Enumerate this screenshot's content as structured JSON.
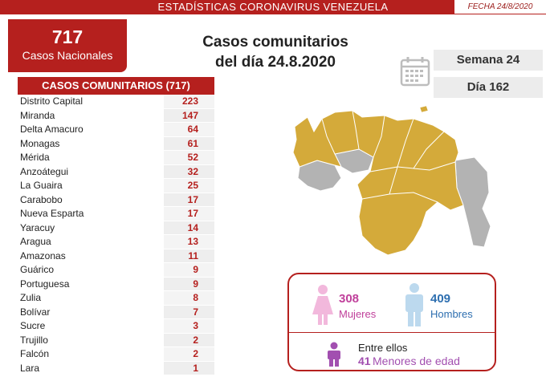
{
  "header": {
    "title": "ESTADÍSTICAS CORONAVIRUS VENEZUELA",
    "date": "FECHA 24/8/2020"
  },
  "national": {
    "count": "717",
    "label": "Casos Nacionales"
  },
  "headline": {
    "line1": "Casos comunitarios",
    "line2": "del día 24.8.2020"
  },
  "calendar": {
    "week": "Semana 24",
    "day": "Día 162"
  },
  "table": {
    "header": "CASOS COMUNITARIOS (717)",
    "rows": [
      {
        "name": "Distrito Capital",
        "value": "223"
      },
      {
        "name": "Miranda",
        "value": "147"
      },
      {
        "name": "Delta Amacuro",
        "value": "64"
      },
      {
        "name": "Monagas",
        "value": "61"
      },
      {
        "name": "Mérida",
        "value": "52"
      },
      {
        "name": "Anzoátegui",
        "value": "32"
      },
      {
        "name": "La Guaira",
        "value": "25"
      },
      {
        "name": "Carabobo",
        "value": "17"
      },
      {
        "name": "Nueva Esparta",
        "value": "17"
      },
      {
        "name": "Yaracuy",
        "value": "14"
      },
      {
        "name": "Aragua",
        "value": "13"
      },
      {
        "name": "Amazonas",
        "value": "11"
      },
      {
        "name": "Guárico",
        "value": "9"
      },
      {
        "name": "Portuguesa",
        "value": "9"
      },
      {
        "name": "Zulia",
        "value": "8"
      },
      {
        "name": "Bolívar",
        "value": "7"
      },
      {
        "name": "Sucre",
        "value": "3"
      },
      {
        "name": "Trujillo",
        "value": "2"
      },
      {
        "name": "Falcón",
        "value": "2"
      },
      {
        "name": "Lara",
        "value": "1"
      }
    ]
  },
  "demographics": {
    "women_count": "308",
    "women_label": "Mujeres",
    "men_count": "409",
    "men_label": "Hombres",
    "minors_intro": "Entre ellos",
    "minors_count": "41",
    "minors_label": "Menores de edad"
  },
  "colors": {
    "brand_red": "#b5201e",
    "map_affected": "#d4aa3a",
    "map_unaffected": "#b3b3b3",
    "women": "#c0409b",
    "men": "#2e6fb0",
    "minors": "#a24fb0"
  },
  "icons": [
    "calendar-icon",
    "woman-icon",
    "man-icon",
    "child-icon",
    "venezuela-map"
  ]
}
